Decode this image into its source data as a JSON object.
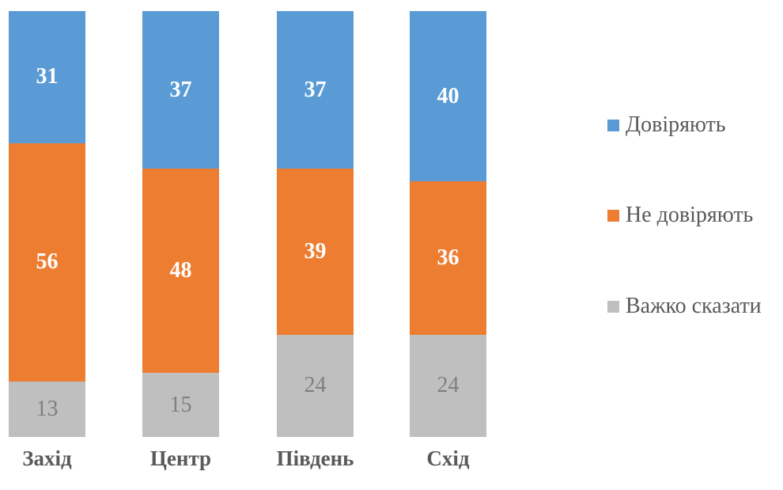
{
  "chart_data": {
    "type": "bar",
    "variant": "stacked-column",
    "title": "",
    "xlabel": "",
    "ylabel": "",
    "categories": [
      "Захід",
      "Центр",
      "Південь",
      "Схід"
    ],
    "series": [
      {
        "name": "Довіряють",
        "color": "#5B9BD5",
        "values": [
          31,
          37,
          37,
          40
        ],
        "label_color": "#FFFFFF",
        "label_bold": true
      },
      {
        "name": "Не довіряють",
        "color": "#ED7D31",
        "values": [
          56,
          48,
          39,
          36
        ],
        "label_color": "#FFFFFF",
        "label_bold": true
      },
      {
        "name": "Важко сказати",
        "color": "#BFBFBF",
        "values": [
          13,
          15,
          24,
          24
        ],
        "label_color": "#7F7F7F",
        "label_bold": false
      }
    ],
    "stack_totals": [
      100,
      100,
      100,
      100
    ],
    "ylim": [
      0,
      100
    ],
    "grid": false,
    "axes_visible": false,
    "data_labels": "centered-in-segment",
    "legend_position": "right",
    "text_color": "#595959",
    "background": "#FFFFFF"
  }
}
